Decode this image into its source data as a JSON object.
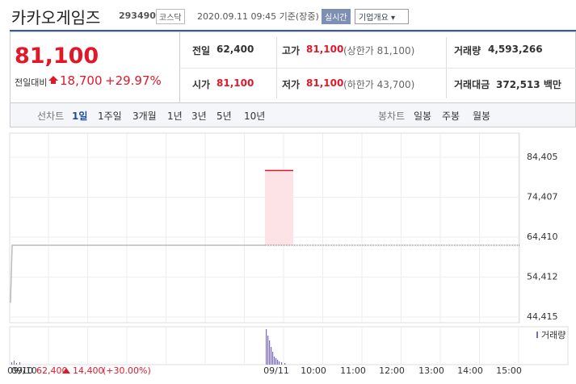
{
  "header": {
    "name": "카카오게임즈",
    "code": "293490",
    "market": "코스닥",
    "timestamp": "2020.09.11 09:45 기준(장중)",
    "realtime_button": "실시간",
    "overview_button": "기업개요"
  },
  "price": {
    "current": "81,100",
    "change_label": "전일대비",
    "change": "18,700",
    "change_rate": "+29.97%"
  },
  "stats": [
    {
      "label": "전일",
      "value": "62,400"
    },
    {
      "label": "고가",
      "value": "81,100",
      "note": "(상한가 81,100)"
    },
    {
      "label": "거래량",
      "value": "4,593,266"
    },
    {
      "label": "시가",
      "value": "81,100"
    },
    {
      "label": "저가",
      "value": "81,100",
      "note": "(하한가 43,700)"
    },
    {
      "label": "거래대금",
      "value": "372,513 백만"
    }
  ],
  "tabs": {
    "line_label": "선차트",
    "line_periods": [
      "1일",
      "1주일",
      "3개월",
      "1년",
      "3년",
      "5년",
      "10년"
    ],
    "candle_label": "봉차트",
    "candle_periods": [
      "일봉",
      "주봉",
      "월봉"
    ]
  },
  "chart_data": {
    "type": "line",
    "ylim": [
      43000,
      90460
    ],
    "yticks": [
      {
        "value": 84405,
        "label": "84,405"
      },
      {
        "value": 74407,
        "label": "74,407"
      },
      {
        "value": 64410,
        "label": "64,410"
      },
      {
        "value": 54412,
        "label": "54,412"
      },
      {
        "value": 44415,
        "label": "44,415"
      }
    ],
    "prev_day_open": 48000,
    "prev_day_close": 62400,
    "today_high": 81100,
    "x_labels": [
      "09/10",
      "09/11",
      "10:00",
      "11:00",
      "12:00",
      "13:00",
      "14:00",
      "15:00"
    ],
    "volume_label": "거래량"
  },
  "footer": {
    "date": "09/10",
    "close": "62,400",
    "change": "14,400",
    "rate": "(+30.00%)"
  }
}
